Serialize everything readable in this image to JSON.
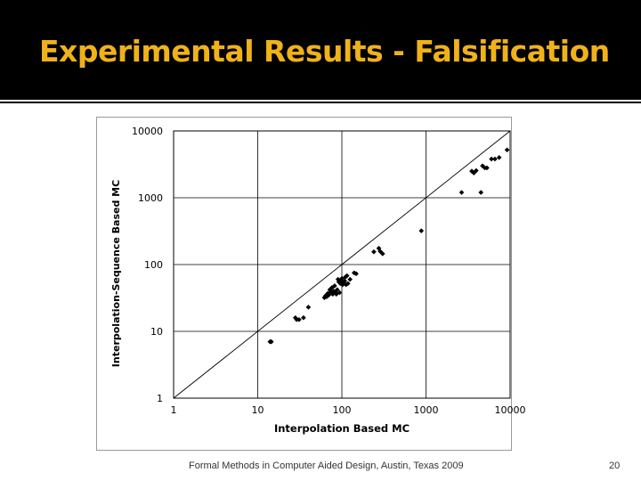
{
  "slide": {
    "title": "Experimental Results - Falsification",
    "footer": "Formal Methods in Computer Aided Design, Austin, Texas 2009",
    "page_number": "20",
    "title_color": "#f0b21a",
    "title_bar_color": "#000000"
  },
  "chart_data": {
    "type": "scatter",
    "title": "",
    "xlabel": "Interpolation Based MC",
    "ylabel": "Interpolation-Sequence Based MC",
    "xscale": "log",
    "yscale": "log",
    "xlim": [
      1,
      10000
    ],
    "ylim": [
      1,
      10000
    ],
    "x_ticks": [
      "1",
      "10",
      "100",
      "1000",
      "10000"
    ],
    "y_ticks": [
      "1",
      "10",
      "100",
      "1000",
      "10000"
    ],
    "grid": true,
    "legend": "none",
    "reference_line": "y = x",
    "marker_color": "#000000",
    "points": [
      [
        14,
        7
      ],
      [
        14.5,
        7
      ],
      [
        28,
        16
      ],
      [
        29,
        15
      ],
      [
        31,
        15
      ],
      [
        35,
        16
      ],
      [
        40,
        23
      ],
      [
        62,
        32
      ],
      [
        64,
        34
      ],
      [
        66,
        33
      ],
      [
        68,
        37
      ],
      [
        70,
        35
      ],
      [
        72,
        42
      ],
      [
        74,
        39
      ],
      [
        76,
        45
      ],
      [
        78,
        36
      ],
      [
        80,
        40
      ],
      [
        82,
        48
      ],
      [
        84,
        38
      ],
      [
        86,
        36
      ],
      [
        88,
        42
      ],
      [
        90,
        60
      ],
      [
        92,
        55
      ],
      [
        94,
        38
      ],
      [
        96,
        52
      ],
      [
        98,
        58
      ],
      [
        100,
        62
      ],
      [
        102,
        50
      ],
      [
        105,
        55
      ],
      [
        108,
        57
      ],
      [
        110,
        65
      ],
      [
        112,
        50
      ],
      [
        115,
        68
      ],
      [
        118,
        52
      ],
      [
        125,
        60
      ],
      [
        140,
        75
      ],
      [
        148,
        73
      ],
      [
        240,
        155
      ],
      [
        275,
        175
      ],
      [
        285,
        158
      ],
      [
        305,
        145
      ],
      [
        880,
        320
      ],
      [
        2650,
        1200
      ],
      [
        3500,
        2500
      ],
      [
        3700,
        2350
      ],
      [
        3950,
        2550
      ],
      [
        4500,
        1200
      ],
      [
        4700,
        3000
      ],
      [
        5000,
        2800
      ],
      [
        5300,
        2800
      ],
      [
        6000,
        3800
      ],
      [
        6600,
        3800
      ],
      [
        7400,
        4000
      ],
      [
        9200,
        5200
      ]
    ]
  }
}
